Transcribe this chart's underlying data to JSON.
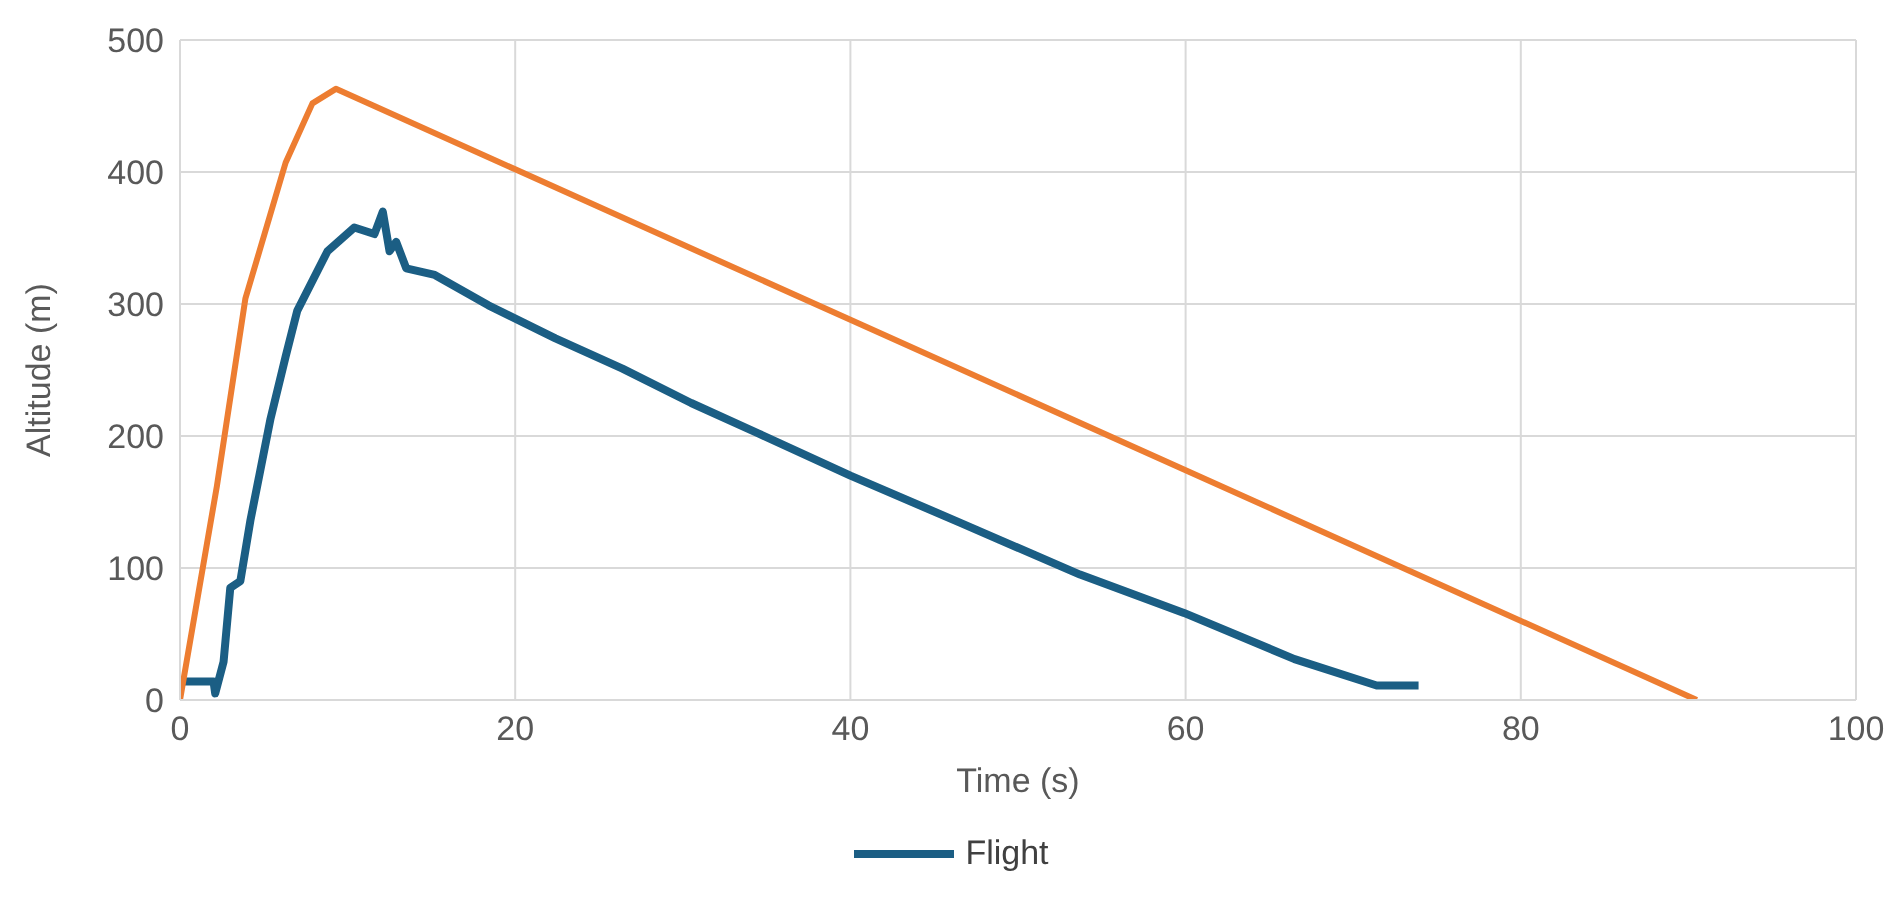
{
  "chart_data": {
    "type": "line",
    "xlabel": "Time (s)",
    "ylabel": "Altitude (m)",
    "xlim": [
      0,
      100
    ],
    "xticks": [
      0,
      20,
      40,
      60,
      80,
      100
    ],
    "ylim": [
      0,
      500
    ],
    "yticks": [
      0,
      100,
      200,
      300,
      400,
      500
    ],
    "grid": true,
    "legend": "bottom",
    "line_style": "solid",
    "marker": "none",
    "series": [
      {
        "name": "Flight",
        "color": "#1b5e84",
        "x": [
          0,
          2,
          2.1,
          2.6,
          3.0,
          3.6,
          4.2,
          5.4,
          6.3,
          7.0,
          8.8,
          10.4,
          11.6,
          12.1,
          12.5,
          12.9,
          13.5,
          15.2,
          18.4,
          22.4,
          26.4,
          30.5,
          34.5,
          40,
          46.6,
          53.7,
          59.9,
          66.5,
          71.4,
          73.9
        ],
        "values": [
          14,
          14,
          5,
          29,
          85,
          90,
          136,
          213,
          260,
          295,
          340,
          358,
          353,
          370,
          340,
          347,
          327,
          322,
          299,
          274,
          251,
          225,
          202,
          170,
          134,
          95,
          66,
          31,
          11,
          11
        ]
      },
      {
        "color": "#ed7d31",
        "x": [
          0,
          2.2,
          3.9,
          6.3,
          7.9,
          9.3,
          20,
          40,
          60.2,
          90.5
        ],
        "values": [
          0,
          162,
          304,
          407,
          452,
          463,
          402,
          288,
          173,
          0
        ]
      }
    ]
  }
}
